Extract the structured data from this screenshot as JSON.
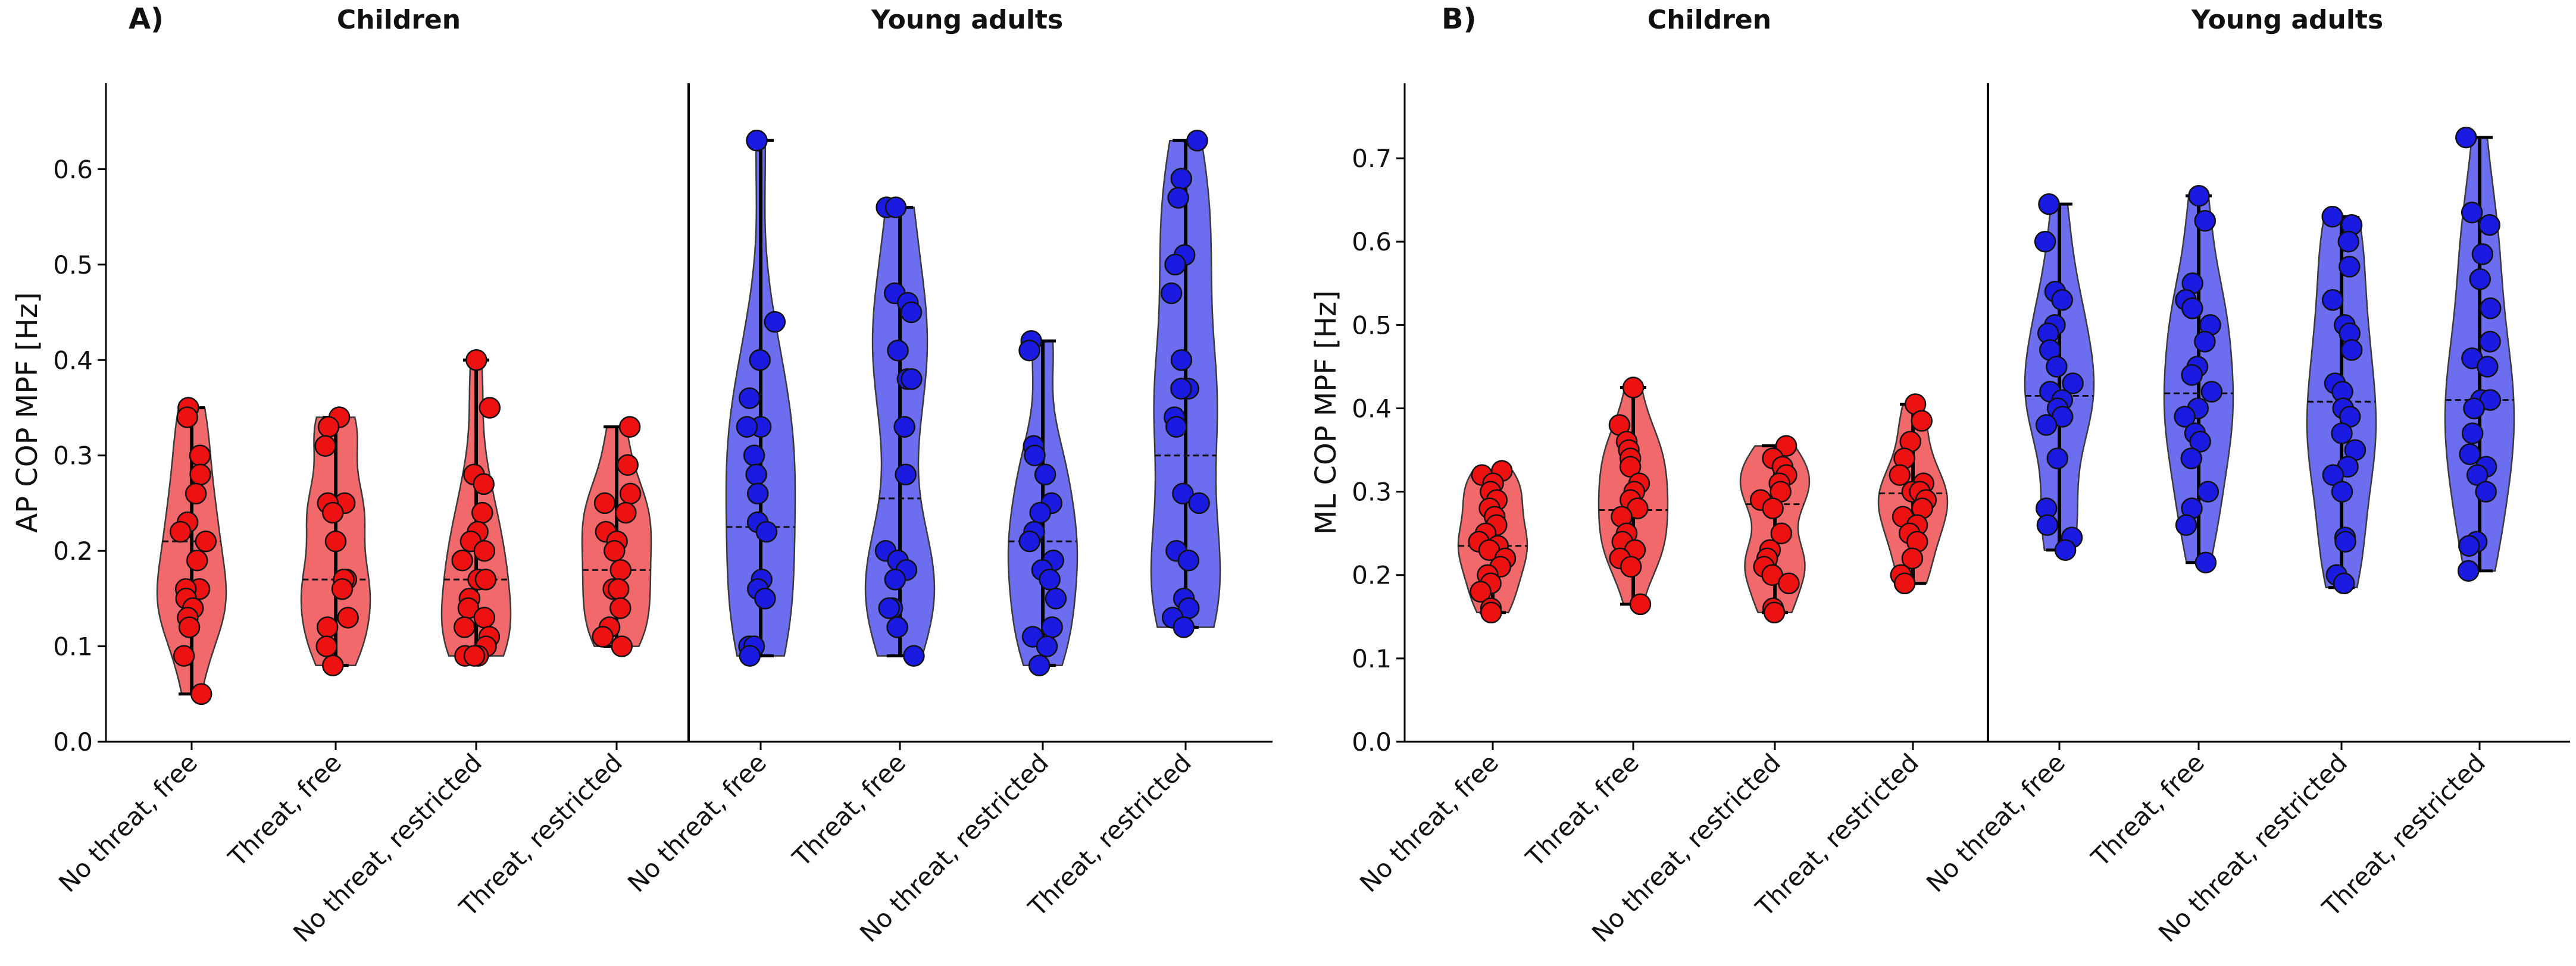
{
  "chart_data": [
    {
      "type": "violin",
      "panel_label": "A)",
      "ylabel": "AP COP MPF [Hz]",
      "ylim": [
        0.0,
        0.69
      ],
      "yticks": [
        0.0,
        0.1,
        0.2,
        0.3,
        0.4,
        0.5,
        0.6
      ],
      "ytick_labels": [
        "0.0",
        "0.1",
        "0.2",
        "0.3",
        "0.4",
        "0.5",
        "0.6"
      ],
      "groups": [
        {
          "name": "Children",
          "color": "#f0595a"
        },
        {
          "name": "Young adults",
          "color": "#5d5dee"
        }
      ],
      "categories": [
        "No threat, free",
        "Threat, free",
        "No threat, restricted",
        "Threat, restricted",
        "No threat, free",
        "Threat, free",
        "No threat, restricted",
        "Threat, restricted"
      ],
      "series": [
        {
          "group": "Children",
          "condition": "No threat, free",
          "min": 0.05,
          "max": 0.35,
          "median": 0.21,
          "values": [
            0.35,
            0.34,
            0.3,
            0.28,
            0.26,
            0.23,
            0.22,
            0.21,
            0.19,
            0.16,
            0.16,
            0.15,
            0.14,
            0.13,
            0.12,
            0.09,
            0.05
          ]
        },
        {
          "group": "Children",
          "condition": "Threat, free",
          "min": 0.08,
          "max": 0.34,
          "median": 0.17,
          "values": [
            0.34,
            0.33,
            0.31,
            0.25,
            0.25,
            0.24,
            0.21,
            0.17,
            0.17,
            0.16,
            0.13,
            0.12,
            0.1,
            0.08
          ]
        },
        {
          "group": "Children",
          "condition": "No threat, restricted",
          "min": 0.09,
          "max": 0.4,
          "median": 0.17,
          "values": [
            0.4,
            0.35,
            0.28,
            0.27,
            0.24,
            0.22,
            0.21,
            0.2,
            0.19,
            0.17,
            0.17,
            0.15,
            0.14,
            0.13,
            0.12,
            0.11,
            0.1,
            0.09,
            0.09,
            0.09
          ]
        },
        {
          "group": "Children",
          "condition": "Threat, restricted",
          "min": 0.1,
          "max": 0.33,
          "median": 0.18,
          "values": [
            0.33,
            0.29,
            0.26,
            0.25,
            0.24,
            0.22,
            0.21,
            0.2,
            0.18,
            0.16,
            0.16,
            0.14,
            0.12,
            0.11,
            0.1
          ]
        },
        {
          "group": "Young adults",
          "condition": "No threat, free",
          "min": 0.09,
          "max": 0.63,
          "median": 0.225,
          "values": [
            0.63,
            0.44,
            0.4,
            0.36,
            0.33,
            0.33,
            0.3,
            0.28,
            0.26,
            0.23,
            0.22,
            0.17,
            0.16,
            0.15,
            0.1,
            0.1,
            0.09
          ]
        },
        {
          "group": "Young adults",
          "condition": "Threat, free",
          "min": 0.09,
          "max": 0.56,
          "median": 0.255,
          "values": [
            0.56,
            0.56,
            0.47,
            0.46,
            0.45,
            0.41,
            0.38,
            0.38,
            0.33,
            0.28,
            0.2,
            0.19,
            0.18,
            0.17,
            0.14,
            0.14,
            0.12,
            0.09
          ]
        },
        {
          "group": "Young adults",
          "condition": "No threat, restricted",
          "min": 0.08,
          "max": 0.42,
          "median": 0.21,
          "values": [
            0.42,
            0.41,
            0.31,
            0.3,
            0.28,
            0.25,
            0.24,
            0.22,
            0.21,
            0.19,
            0.18,
            0.17,
            0.15,
            0.12,
            0.11,
            0.1,
            0.08
          ]
        },
        {
          "group": "Young adults",
          "condition": "Threat, restricted",
          "min": 0.12,
          "max": 0.63,
          "median": 0.3,
          "values": [
            0.63,
            0.59,
            0.57,
            0.51,
            0.5,
            0.47,
            0.4,
            0.37,
            0.37,
            0.34,
            0.33,
            0.26,
            0.25,
            0.2,
            0.19,
            0.15,
            0.14,
            0.13,
            0.12
          ]
        }
      ]
    },
    {
      "type": "violin",
      "panel_label": "B)",
      "ylabel": "ML COP MPF [Hz]",
      "ylim": [
        0.0,
        0.79
      ],
      "yticks": [
        0.0,
        0.1,
        0.2,
        0.3,
        0.4,
        0.5,
        0.6,
        0.7
      ],
      "ytick_labels": [
        "0.0",
        "0.1",
        "0.2",
        "0.3",
        "0.4",
        "0.5",
        "0.6",
        "0.7"
      ],
      "groups": [
        {
          "name": "Children",
          "color": "#f0595a"
        },
        {
          "name": "Young adults",
          "color": "#5d5dee"
        }
      ],
      "categories": [
        "No threat, free",
        "Threat, free",
        "No threat, restricted",
        "Threat, restricted",
        "No threat, free",
        "Threat, free",
        "No threat, restricted",
        "Threat, restricted"
      ],
      "series": [
        {
          "group": "Children",
          "condition": "No threat, free",
          "min": 0.155,
          "max": 0.325,
          "median": 0.235,
          "values": [
            0.325,
            0.32,
            0.31,
            0.3,
            0.29,
            0.28,
            0.27,
            0.26,
            0.25,
            0.24,
            0.235,
            0.23,
            0.22,
            0.21,
            0.2,
            0.19,
            0.18,
            0.16,
            0.155
          ]
        },
        {
          "group": "Children",
          "condition": "Threat, free",
          "min": 0.165,
          "max": 0.425,
          "median": 0.278,
          "values": [
            0.425,
            0.38,
            0.36,
            0.35,
            0.34,
            0.33,
            0.31,
            0.3,
            0.29,
            0.28,
            0.27,
            0.25,
            0.24,
            0.23,
            0.22,
            0.21,
            0.165
          ]
        },
        {
          "group": "Children",
          "condition": "No threat, restricted",
          "min": 0.155,
          "max": 0.355,
          "median": 0.285,
          "values": [
            0.355,
            0.34,
            0.33,
            0.32,
            0.31,
            0.3,
            0.29,
            0.28,
            0.25,
            0.23,
            0.22,
            0.21,
            0.2,
            0.19,
            0.16,
            0.155
          ]
        },
        {
          "group": "Children",
          "condition": "Threat, restricted",
          "min": 0.19,
          "max": 0.405,
          "median": 0.298,
          "values": [
            0.405,
            0.385,
            0.36,
            0.34,
            0.32,
            0.31,
            0.3,
            0.3,
            0.29,
            0.28,
            0.27,
            0.26,
            0.25,
            0.24,
            0.22,
            0.2,
            0.19
          ]
        },
        {
          "group": "Young adults",
          "condition": "No threat, free",
          "min": 0.23,
          "max": 0.645,
          "median": 0.415,
          "values": [
            0.645,
            0.6,
            0.54,
            0.53,
            0.5,
            0.49,
            0.47,
            0.45,
            0.43,
            0.42,
            0.41,
            0.4,
            0.39,
            0.38,
            0.34,
            0.28,
            0.26,
            0.245,
            0.23
          ]
        },
        {
          "group": "Young adults",
          "condition": "Threat, free",
          "min": 0.215,
          "max": 0.655,
          "median": 0.418,
          "values": [
            0.655,
            0.625,
            0.55,
            0.53,
            0.52,
            0.5,
            0.48,
            0.45,
            0.44,
            0.42,
            0.4,
            0.39,
            0.37,
            0.36,
            0.34,
            0.3,
            0.28,
            0.26,
            0.215
          ]
        },
        {
          "group": "Young adults",
          "condition": "No threat, restricted",
          "min": 0.185,
          "max": 0.63,
          "median": 0.408,
          "values": [
            0.63,
            0.62,
            0.6,
            0.57,
            0.53,
            0.5,
            0.49,
            0.47,
            0.43,
            0.42,
            0.4,
            0.39,
            0.37,
            0.35,
            0.33,
            0.32,
            0.3,
            0.245,
            0.24,
            0.2,
            0.19
          ]
        },
        {
          "group": "Young adults",
          "condition": "Threat, restricted",
          "min": 0.205,
          "max": 0.725,
          "median": 0.41,
          "values": [
            0.725,
            0.635,
            0.62,
            0.585,
            0.555,
            0.52,
            0.48,
            0.46,
            0.45,
            0.41,
            0.41,
            0.4,
            0.37,
            0.345,
            0.33,
            0.32,
            0.3,
            0.24,
            0.235,
            0.205
          ]
        }
      ]
    }
  ]
}
